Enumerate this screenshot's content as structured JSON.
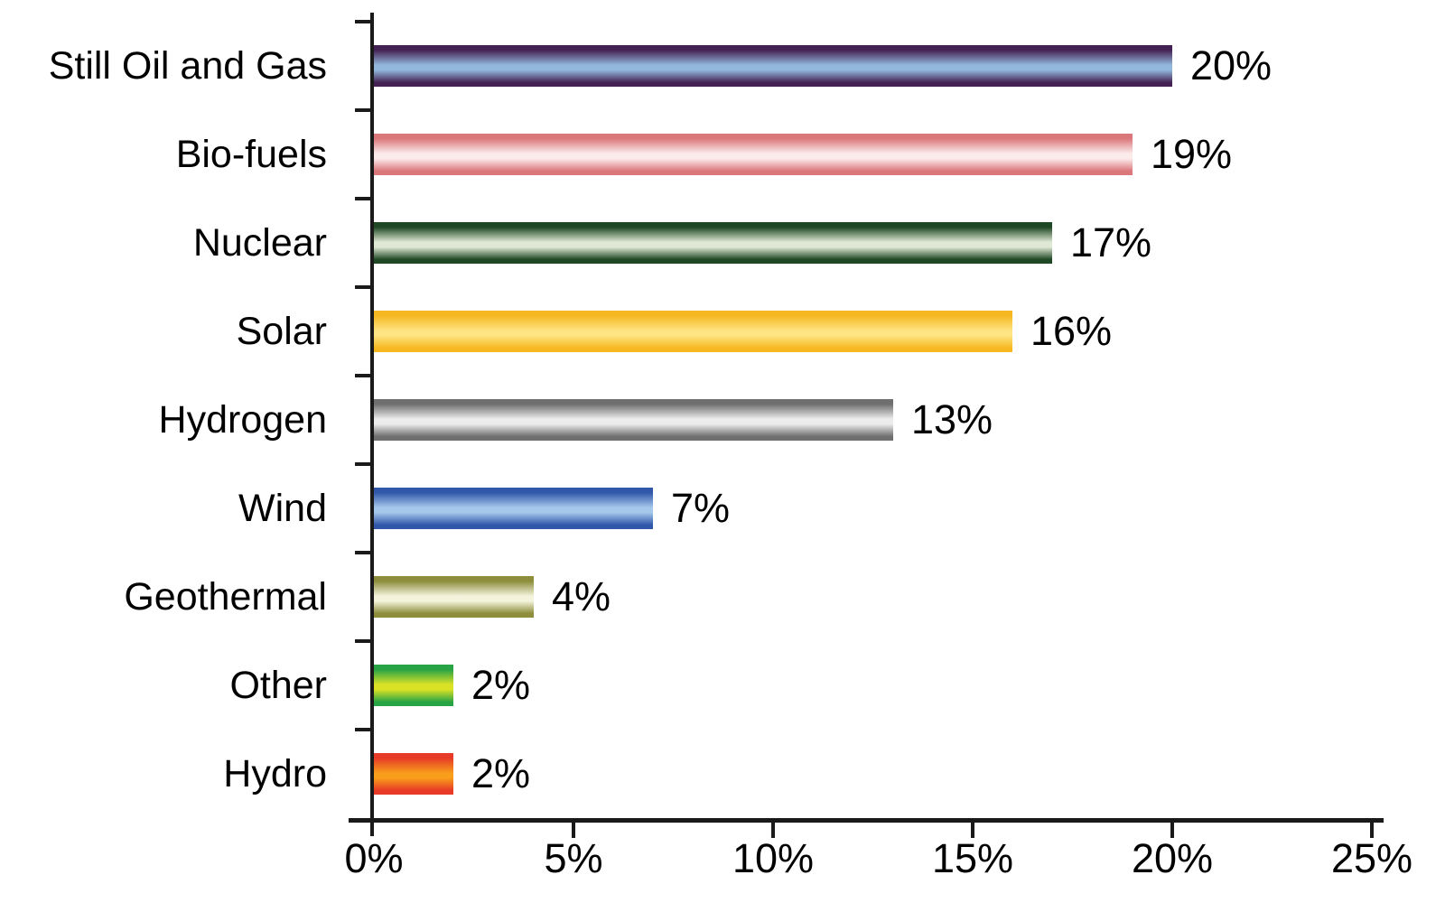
{
  "chart_data": {
    "type": "bar",
    "orientation": "horizontal",
    "title": "",
    "xlabel": "",
    "ylabel": "",
    "xlim": [
      0,
      25
    ],
    "grid": false,
    "legend": false,
    "categories": [
      "Still Oil and Gas",
      "Bio-fuels",
      "Nuclear",
      "Solar",
      "Hydrogen",
      "Wind",
      "Geothermal",
      "Other",
      "Hydro"
    ],
    "values": [
      20,
      19,
      17,
      16,
      13,
      7,
      4,
      2,
      2
    ],
    "value_labels": [
      "20%",
      "19%",
      "17%",
      "16%",
      "13%",
      "7%",
      "4%",
      "2%",
      "2%"
    ],
    "x_tick_values": [
      0,
      5,
      10,
      15,
      20,
      25
    ],
    "x_tick_labels": [
      "0%",
      "5%",
      "10%",
      "15%",
      "20%",
      "25%"
    ],
    "bar_styles": [
      {
        "name": "still-oil-and-gas",
        "dark": "#442153",
        "light": "#93b8dd"
      },
      {
        "name": "bio-fuels",
        "dark": "#da777b",
        "light": "#fcebeb"
      },
      {
        "name": "nuclear",
        "dark": "#1f4824",
        "light": "#dfe8d5"
      },
      {
        "name": "solar",
        "dark": "#f5b820",
        "light": "#fee482"
      },
      {
        "name": "hydrogen",
        "dark": "#6f6f6f",
        "light": "#ececec"
      },
      {
        "name": "wind",
        "dark": "#3157aa",
        "light": "#a5c8eb"
      },
      {
        "name": "geothermal",
        "dark": "#8d8d3c",
        "light": "#f4f4dd"
      },
      {
        "name": "other",
        "dark": "#28a445",
        "light": "#dbe226"
      },
      {
        "name": "hydro",
        "dark": "#e73a27",
        "light": "#f89e1b"
      }
    ],
    "axis_color": "#1a1a1a",
    "text_color": "#000000",
    "background_color": "#ffffff"
  }
}
